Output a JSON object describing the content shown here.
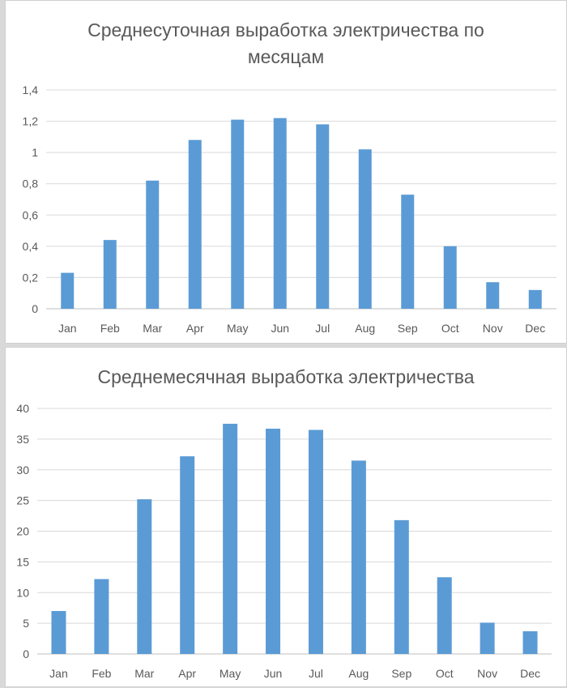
{
  "chart_data": [
    {
      "type": "bar",
      "title": "Среднесуточная выработка электричества по месяцам",
      "xlabel": "",
      "ylabel": "",
      "categories": [
        "Jan",
        "Feb",
        "Mar",
        "Apr",
        "May",
        "Jun",
        "Jul",
        "Aug",
        "Sep",
        "Oct",
        "Nov",
        "Dec"
      ],
      "values": [
        0.23,
        0.44,
        0.82,
        1.08,
        1.21,
        1.22,
        1.18,
        1.02,
        0.73,
        0.4,
        0.17,
        0.12
      ],
      "ylim": [
        0,
        1.4
      ],
      "yticks": [
        "0",
        "0,2",
        "0,4",
        "0,6",
        "0,8",
        "1",
        "1,2",
        "1,4"
      ],
      "grid": true,
      "legend": "none",
      "color": "#5b9bd5"
    },
    {
      "type": "bar",
      "title": "Среднемесячная выработка электричества",
      "xlabel": "",
      "ylabel": "",
      "categories": [
        "Jan",
        "Feb",
        "Mar",
        "Apr",
        "May",
        "Jun",
        "Jul",
        "Aug",
        "Sep",
        "Oct",
        "Nov",
        "Dec"
      ],
      "values": [
        7.0,
        12.2,
        25.2,
        32.2,
        37.5,
        36.7,
        36.5,
        31.5,
        21.8,
        12.5,
        5.1,
        3.7
      ],
      "ylim": [
        0,
        40
      ],
      "yticks": [
        "0",
        "5",
        "10",
        "15",
        "20",
        "25",
        "30",
        "35",
        "40"
      ],
      "grid": true,
      "legend": "none",
      "color": "#5b9bd5"
    }
  ]
}
